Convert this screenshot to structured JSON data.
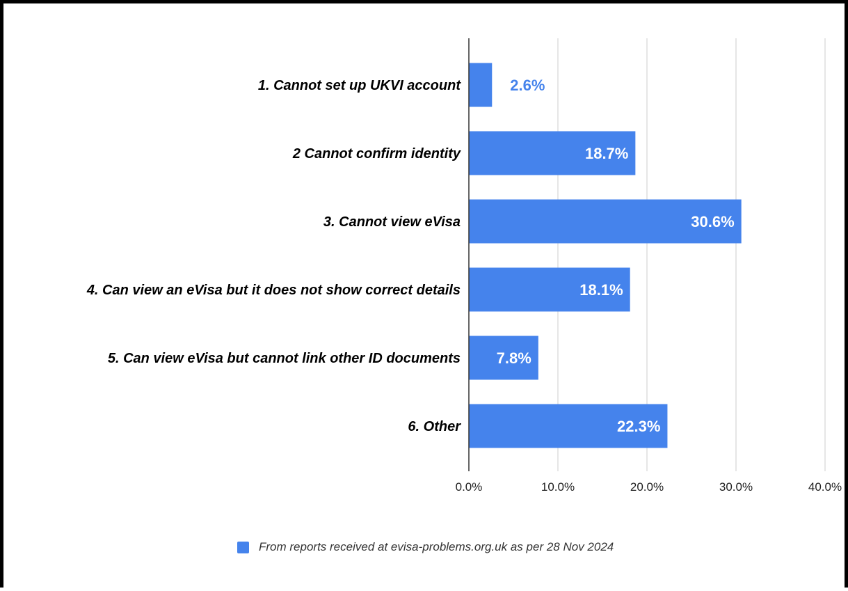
{
  "chart_data": {
    "type": "bar",
    "orientation": "horizontal",
    "categories": [
      "1. Cannot set up UKVI account",
      "2 Cannot confirm identity",
      "3. Cannot view eVisa",
      "4. Can view an eVisa but it does not show correct details",
      "5. Can view eVisa but cannot link other ID documents",
      "6. Other"
    ],
    "values": [
      2.6,
      18.7,
      30.6,
      18.1,
      7.8,
      22.3
    ],
    "data_labels": [
      "2.6%",
      "18.7%",
      "30.6%",
      "18.1%",
      "7.8%",
      "22.3%"
    ],
    "x_ticks": [
      "0.0%",
      "10.0%",
      "20.0%",
      "30.0%",
      "40.0%"
    ],
    "xlim": [
      0,
      40
    ],
    "grid": true,
    "legend": {
      "placement": "bottom",
      "entries": [
        "From reports received at evisa-problems.org.uk as per 28 Nov 2024"
      ]
    },
    "colors": {
      "bar": "#4583ec",
      "label_inside": "#ffffff",
      "label_outside": "#4583ec",
      "grid": "#cccccc",
      "axis": "#333333"
    }
  }
}
